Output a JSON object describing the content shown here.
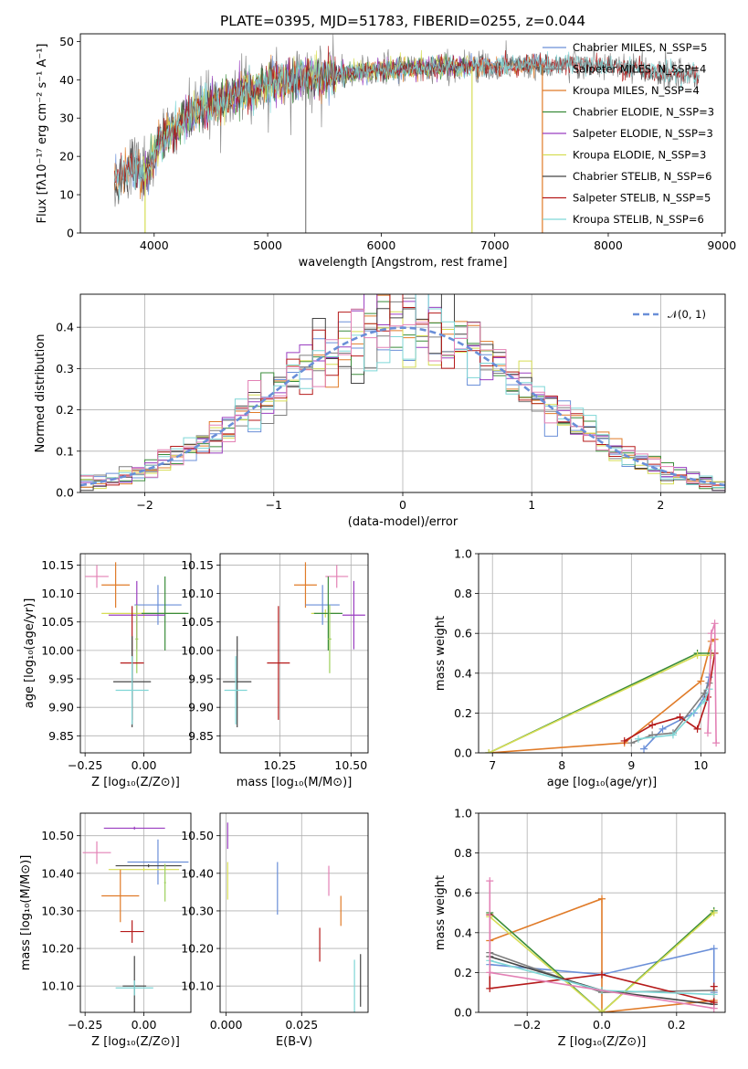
{
  "figure": {
    "title": "PLATE=0395, MJD=51783, FIBERID=0255, z=0.044"
  },
  "palette": [
    "#6a8fd8",
    "#7f7f7f",
    "#e07b28",
    "#3a8c3a",
    "#9a3ec0",
    "#d6dd55",
    "#444444",
    "#b51a1a",
    "#7fd6d6",
    "#e381b5",
    "#9ccf5a"
  ],
  "chart_data": [
    {
      "id": "spectrum",
      "type": "line",
      "xlabel": "wavelength [Angstrom, rest frame]",
      "ylabel": "Flux [fλ10⁻¹⁷ erg cm⁻² s⁻¹ A⁻¹]",
      "xlim": [
        3350,
        9030
      ],
      "ylim": [
        0,
        52
      ],
      "xticks": [
        4000,
        5000,
        6000,
        7000,
        8000,
        9000
      ],
      "yticks": [
        0,
        10,
        20,
        30,
        40,
        50
      ],
      "grid": false,
      "legend_position": "right",
      "continuum": [
        [
          3650,
          13
        ],
        [
          3800,
          18
        ],
        [
          3900,
          15
        ],
        [
          3960,
          17
        ],
        [
          4050,
          24
        ],
        [
          4200,
          28
        ],
        [
          4400,
          32
        ],
        [
          4600,
          35
        ],
        [
          4800,
          37
        ],
        [
          5000,
          39
        ],
        [
          5200,
          40
        ],
        [
          5500,
          41
        ],
        [
          5800,
          42
        ],
        [
          6200,
          43
        ],
        [
          6600,
          43.5
        ],
        [
          7000,
          43.5
        ],
        [
          7500,
          44
        ],
        [
          8000,
          43.5
        ],
        [
          8500,
          42
        ],
        [
          8800,
          41
        ]
      ],
      "series": [
        {
          "name": "Chabrier MILES, N_SSP=5",
          "color": "#6a8fd8",
          "x_range": [
            3650,
            7420
          ]
        },
        {
          "name": "Salpeter MILES, N_SSP=4",
          "color": "#7f7f7f",
          "x_range": [
            3650,
            8800
          ]
        },
        {
          "name": "Kroupa MILES, N_SSP=4",
          "color": "#e07b28",
          "x_range": [
            3650,
            7420
          ]
        },
        {
          "name": "Chabrier ELODIE, N_SSP=3",
          "color": "#3a8c3a",
          "x_range": [
            3900,
            6800
          ]
        },
        {
          "name": "Salpeter ELODIE, N_SSP=3",
          "color": "#9a3ec0",
          "x_range": [
            3900,
            6800
          ]
        },
        {
          "name": "Kroupa ELODIE, N_SSP=3",
          "color": "#d6dd55",
          "x_range": [
            3900,
            6800
          ]
        },
        {
          "name": "Chabrier STELIB, N_SSP=6",
          "color": "#444444",
          "x_range": [
            3650,
            8800
          ]
        },
        {
          "name": "Salpeter STELIB, N_SSP=5",
          "color": "#b51a1a",
          "x_range": [
            3650,
            8800
          ]
        },
        {
          "name": "Kroupa STELIB, N_SSP=6",
          "color": "#7fd6d6",
          "x_range": [
            3650,
            8800
          ]
        }
      ],
      "drops": [
        {
          "x": 3920,
          "color": "#d6dd55"
        },
        {
          "x": 5335,
          "color": "#7f7f7f"
        },
        {
          "x": 6800,
          "color": "#d6dd55"
        },
        {
          "x": 7420,
          "color": "#e07b28"
        }
      ]
    },
    {
      "id": "residuals",
      "type": "histogram",
      "xlabel": "(data-model)/error",
      "ylabel": "Normed distribution",
      "xlim": [
        -2.5,
        2.5
      ],
      "ylim": [
        0,
        0.48
      ],
      "xticks": [
        -2,
        -1,
        0,
        1,
        2
      ],
      "yticks": [
        0,
        0.1,
        0.2,
        0.3,
        0.4
      ],
      "grid": true,
      "legend_position": "top-right",
      "reference": {
        "name": "𝒩(0, 1)",
        "mu": 0,
        "sigma": 1,
        "color": "#6a8fd8"
      },
      "bin_edges_range": [
        -2.5,
        2.5
      ],
      "bin_width": 0.1,
      "colors": [
        "#6a8fd8",
        "#7f7f7f",
        "#e07b28",
        "#3a8c3a",
        "#9a3ec0",
        "#d6dd55",
        "#444444",
        "#b51a1a",
        "#7fd6d6",
        "#e381b5"
      ]
    },
    {
      "id": "age-vs-Z",
      "type": "errorbar",
      "xlabel": "Z [log₁₀(Z/Z⊙)]",
      "ylabel": "age  [log₁₀(age/yr)]",
      "xlim": [
        -0.27,
        0.2
      ],
      "ylim": [
        9.82,
        10.17
      ],
      "xticks": [
        -0.25,
        0.0
      ],
      "xticklabels": [
        "−0.25",
        "0.00"
      ],
      "yticks": [
        9.85,
        9.9,
        9.95,
        10.0,
        10.05,
        10.1,
        10.15
      ],
      "grid": true,
      "points": [
        {
          "x": -0.2,
          "y": 10.13,
          "xerr": 0.05,
          "yerr": 0.02,
          "color": "#e381b5"
        },
        {
          "x": -0.12,
          "y": 10.115,
          "xerr": 0.06,
          "yerr": 0.04,
          "color": "#e07b28"
        },
        {
          "x": 0.06,
          "y": 10.08,
          "xerr": 0.1,
          "yerr": 0.035,
          "color": "#6a8fd8"
        },
        {
          "x": 0.0,
          "y": 10.065,
          "xerr": 0.18,
          "yerr": 0.007,
          "color": "#d6dd55"
        },
        {
          "x": 0.09,
          "y": 10.065,
          "xerr": 0.1,
          "yerr": 0.065,
          "color": "#3a8c3a"
        },
        {
          "x": -0.03,
          "y": 10.062,
          "xerr": 0.12,
          "yerr": 0.06,
          "color": "#9a3ec0"
        },
        {
          "x": -0.03,
          "y": 10.02,
          "xerr": 0.006,
          "yerr": 0.06,
          "color": "#9ccf5a"
        },
        {
          "x": -0.05,
          "y": 9.978,
          "xerr": 0.05,
          "yerr": 0.1,
          "color": "#b51a1a"
        },
        {
          "x": -0.05,
          "y": 9.945,
          "xerr": 0.08,
          "yerr": 0.08,
          "color": "#444444"
        },
        {
          "x": -0.05,
          "y": 9.93,
          "xerr": 0.07,
          "yerr": 0.06,
          "color": "#7fd6d6"
        }
      ]
    },
    {
      "id": "age-vs-mass",
      "type": "errorbar",
      "xlabel": "mass [log₁₀(M/M⊙)]",
      "ylabel": "",
      "xlim": [
        10.04,
        10.56
      ],
      "ylim": [
        9.82,
        10.17
      ],
      "xticks": [
        10.25,
        10.5
      ],
      "xticklabels": [
        "10.25",
        "10.50"
      ],
      "yticks": [
        9.85,
        9.9,
        9.95,
        10.0,
        10.05,
        10.1,
        10.15
      ],
      "grid": true,
      "points": [
        {
          "x": 10.45,
          "y": 10.13,
          "xerr": 0.04,
          "yerr": 0.02,
          "color": "#e381b5"
        },
        {
          "x": 10.34,
          "y": 10.115,
          "xerr": 0.04,
          "yerr": 0.04,
          "color": "#e07b28"
        },
        {
          "x": 10.4,
          "y": 10.08,
          "xerr": 0.06,
          "yerr": 0.035,
          "color": "#6a8fd8"
        },
        {
          "x": 10.41,
          "y": 10.065,
          "xerr": 0.05,
          "yerr": 0.007,
          "color": "#d6dd55"
        },
        {
          "x": 10.42,
          "y": 10.065,
          "xerr": 0.05,
          "yerr": 0.065,
          "color": "#3a8c3a"
        },
        {
          "x": 10.51,
          "y": 10.062,
          "xerr": 0.04,
          "yerr": 0.06,
          "color": "#9a3ec0"
        },
        {
          "x": 10.425,
          "y": 10.02,
          "xerr": 0.006,
          "yerr": 0.06,
          "color": "#9ccf5a"
        },
        {
          "x": 10.245,
          "y": 9.978,
          "xerr": 0.04,
          "yerr": 0.1,
          "color": "#b51a1a"
        },
        {
          "x": 10.1,
          "y": 9.945,
          "xerr": 0.05,
          "yerr": 0.08,
          "color": "#444444"
        },
        {
          "x": 10.095,
          "y": 9.93,
          "xerr": 0.04,
          "yerr": 0.06,
          "color": "#7fd6d6"
        }
      ]
    },
    {
      "id": "weight-vs-age",
      "type": "line",
      "xlabel": "age  [log₁₀(age/yr)]",
      "ylabel": "mass weight",
      "xlim": [
        6.8,
        10.35
      ],
      "ylim": [
        0,
        1.0
      ],
      "xticks": [
        7,
        8,
        9,
        10
      ],
      "yticks": [
        0,
        0.2,
        0.4,
        0.6,
        0.8,
        1.0
      ],
      "grid": true,
      "series": [
        {
          "color": "#6a8fd8",
          "x": [
            9.18,
            9.45,
            9.9,
            10.05,
            10.12
          ],
          "y": [
            0.02,
            0.12,
            0.2,
            0.28,
            0.38
          ]
        },
        {
          "color": "#7f7f7f",
          "x": [
            9.0,
            9.3,
            9.6,
            10.05,
            10.12
          ],
          "y": [
            0.05,
            0.09,
            0.1,
            0.3,
            0.35
          ]
        },
        {
          "color": "#e07b28",
          "x": [
            6.95,
            8.9,
            10.0,
            10.15,
            10.2
          ],
          "y": [
            0.0,
            0.05,
            0.36,
            0.56,
            0.57
          ]
        },
        {
          "color": "#3a8c3a",
          "x": [
            6.95,
            9.95,
            10.15
          ],
          "y": [
            0.0,
            0.5,
            0.5
          ]
        },
        {
          "color": "#d6dd55",
          "x": [
            6.95,
            9.95,
            10.15
          ],
          "y": [
            0.0,
            0.49,
            0.49
          ]
        },
        {
          "color": "#b51a1a",
          "x": [
            8.9,
            9.3,
            9.7,
            9.95,
            10.1,
            10.2
          ],
          "y": [
            0.06,
            0.14,
            0.18,
            0.12,
            0.28,
            0.5
          ]
        },
        {
          "color": "#7fd6d6",
          "x": [
            9.1,
            9.6,
            10.05,
            10.12
          ],
          "y": [
            0.07,
            0.09,
            0.26,
            0.32
          ]
        },
        {
          "color": "#e381b5",
          "x": [
            10.1,
            10.15,
            10.2,
            10.22
          ],
          "y": [
            0.1,
            0.6,
            0.65,
            0.05
          ]
        }
      ]
    },
    {
      "id": "mass-vs-Z",
      "type": "errorbar",
      "xlabel": "Z [log₁₀(Z/Z⊙)]",
      "ylabel": "mass [log₁₀(M/M⊙)]",
      "xlim": [
        -0.27,
        0.2
      ],
      "ylim": [
        10.03,
        10.56
      ],
      "xticks": [
        -0.25,
        0.0
      ],
      "xticklabels": [
        "−0.25",
        "0.00"
      ],
      "yticks": [
        10.1,
        10.2,
        10.3,
        10.4,
        10.5
      ],
      "grid": true,
      "points": [
        {
          "x": -0.04,
          "y": 10.52,
          "xerr": 0.13,
          "yerr": 0.004,
          "color": "#9a3ec0"
        },
        {
          "x": -0.2,
          "y": 10.455,
          "xerr": 0.06,
          "yerr": 0.03,
          "color": "#e381b5"
        },
        {
          "x": 0.06,
          "y": 10.43,
          "xerr": 0.13,
          "yerr": 0.06,
          "color": "#6a8fd8"
        },
        {
          "x": 0.02,
          "y": 10.42,
          "xerr": 0.14,
          "yerr": 0.004,
          "color": "#444444"
        },
        {
          "x": 0.0,
          "y": 10.41,
          "xerr": 0.15,
          "yerr": 0.004,
          "color": "#d6dd55"
        },
        {
          "x": 0.09,
          "y": 10.375,
          "xerr": 0.004,
          "yerr": 0.05,
          "color": "#9ccf5a"
        },
        {
          "x": -0.1,
          "y": 10.34,
          "xerr": 0.08,
          "yerr": 0.07,
          "color": "#e07b28"
        },
        {
          "x": -0.05,
          "y": 10.245,
          "xerr": 0.05,
          "yerr": 0.03,
          "color": "#b51a1a"
        },
        {
          "x": -0.04,
          "y": 10.1,
          "xerr": 0.05,
          "yerr": 0.08,
          "color": "#444444"
        },
        {
          "x": -0.04,
          "y": 10.095,
          "xerr": 0.08,
          "yerr": 0.02,
          "color": "#7fd6d6"
        }
      ]
    },
    {
      "id": "mass-vs-EBV",
      "type": "errorbar",
      "xlabel": "E(B-V)",
      "ylabel": "",
      "xlim": [
        -0.002,
        0.047
      ],
      "ylim": [
        10.03,
        10.56
      ],
      "xticks": [
        0.0,
        0.025
      ],
      "xticklabels": [
        "0.000",
        "0.025"
      ],
      "yticks": [
        10.1,
        10.2,
        10.3,
        10.4,
        10.5
      ],
      "grid": true,
      "points": [
        {
          "x": 0.0005,
          "y": 10.5,
          "xerr": 0,
          "yerr": 0.035,
          "color": "#9a3ec0"
        },
        {
          "x": 0.0005,
          "y": 10.38,
          "xerr": 0,
          "yerr": 0.05,
          "color": "#d6dd55"
        },
        {
          "x": 0.017,
          "y": 10.36,
          "xerr": 0,
          "yerr": 0.07,
          "color": "#6a8fd8"
        },
        {
          "x": 0.034,
          "y": 10.38,
          "xerr": 0,
          "yerr": 0.04,
          "color": "#e381b5"
        },
        {
          "x": 0.038,
          "y": 10.3,
          "xerr": 0,
          "yerr": 0.04,
          "color": "#e07b28"
        },
        {
          "x": 0.031,
          "y": 10.21,
          "xerr": 0,
          "yerr": 0.045,
          "color": "#b51a1a"
        },
        {
          "x": 0.0425,
          "y": 10.1,
          "xerr": 0,
          "yerr": 0.07,
          "color": "#7fd6d6"
        },
        {
          "x": 0.0445,
          "y": 10.115,
          "xerr": 0,
          "yerr": 0.07,
          "color": "#444444"
        }
      ]
    },
    {
      "id": "weight-vs-Z",
      "type": "line",
      "xlabel": "Z [log₁₀(Z/Z⊙)]",
      "ylabel": "mass weight",
      "xlim": [
        -0.33,
        0.33
      ],
      "ylim": [
        0,
        1.0
      ],
      "xticks": [
        -0.2,
        0.0,
        0.2
      ],
      "xticklabels": [
        "−0.2",
        "0.0",
        "0.2"
      ],
      "yticks": [
        0,
        0.2,
        0.4,
        0.6,
        0.8,
        1.0
      ],
      "grid": true,
      "series": [
        {
          "color": "#6a8fd8",
          "x": [
            -0.3,
            0.0,
            0.3,
            0.3
          ],
          "y": [
            0.24,
            0.19,
            0.32,
            0.1
          ]
        },
        {
          "color": "#7f7f7f",
          "x": [
            -0.3,
            0.0,
            0.3
          ],
          "y": [
            0.3,
            0.1,
            0.11
          ]
        },
        {
          "color": "#e07b28",
          "x": [
            -0.3,
            0.0,
            0.0,
            0.3
          ],
          "y": [
            0.36,
            0.57,
            0.0,
            0.06
          ]
        },
        {
          "color": "#3a8c3a",
          "x": [
            -0.3,
            0.0,
            0.3
          ],
          "y": [
            0.5,
            0.0,
            0.51
          ]
        },
        {
          "color": "#d6dd55",
          "x": [
            -0.3,
            0.0,
            0.3
          ],
          "y": [
            0.48,
            0.0,
            0.5
          ]
        },
        {
          "color": "#444444",
          "x": [
            -0.3,
            0.0,
            0.3
          ],
          "y": [
            0.28,
            0.11,
            0.04
          ]
        },
        {
          "color": "#b51a1a",
          "x": [
            -0.3,
            -0.3,
            0.0,
            0.3,
            0.3
          ],
          "y": [
            0.49,
            0.12,
            0.19,
            0.05,
            0.13
          ]
        },
        {
          "color": "#7fd6d6",
          "x": [
            -0.3,
            0.0,
            0.3
          ],
          "y": [
            0.26,
            0.11,
            0.09
          ]
        },
        {
          "color": "#e381b5",
          "x": [
            -0.3,
            -0.3,
            0.3
          ],
          "y": [
            0.66,
            0.2,
            0.02
          ]
        }
      ]
    }
  ]
}
